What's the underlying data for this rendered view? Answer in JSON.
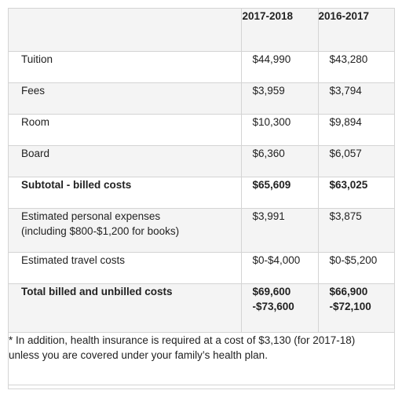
{
  "header": {
    "label": "",
    "year_a": "2017-2018",
    "year_b": "2016-2017"
  },
  "rows": [
    {
      "label": "Tuition",
      "a": "$44,990",
      "b": "$43,280"
    },
    {
      "label": "Fees",
      "a": "$3,959",
      "b": "$3,794"
    },
    {
      "label": "Room",
      "a": "$10,300",
      "b": "$9,894"
    },
    {
      "label": "Board",
      "a": "$6,360",
      "b": "$6,057"
    },
    {
      "label": "Subtotal - billed costs",
      "a": "$65,609",
      "b": "$63,025"
    },
    {
      "label_line1": "Estimated personal expenses",
      "label_line2": "(including $800-$1,200 for books)",
      "a": "$3,991",
      "b": "$3,875"
    },
    {
      "label": "Estimated travel costs",
      "a": "$0-$4,000",
      "b": "$0-$5,200"
    },
    {
      "label": "Total billed and unbilled costs",
      "a_line1": "$69,600",
      "a_line2": "-$73,600",
      "b_line1": "$66,900",
      "b_line2": "-$72,100"
    }
  ],
  "footnote": {
    "line1": "* In addition, health insurance is required at a cost of $3,130 (for 2017-18)",
    "line2": "unless you are covered under your family’s health plan."
  }
}
